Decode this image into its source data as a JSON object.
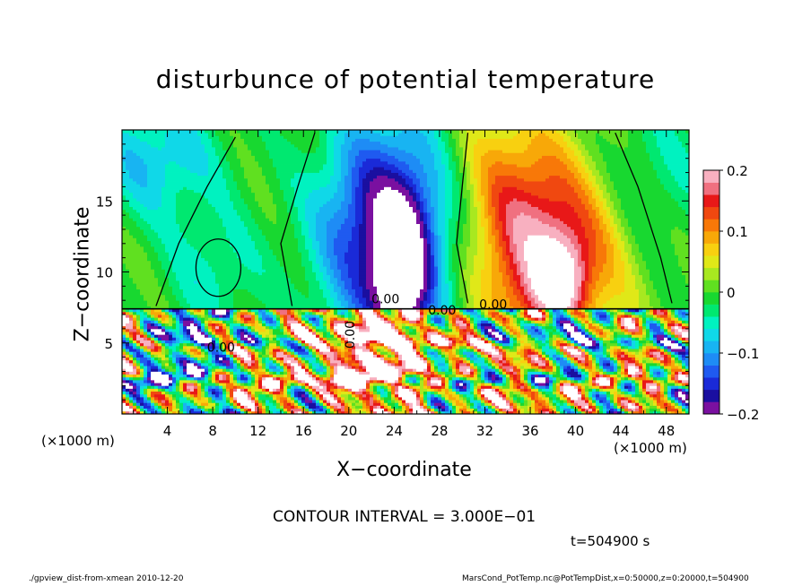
{
  "chart_data": {
    "type": "heatmap",
    "title": "disturbunce of potential temperature",
    "xlabel": "X−coordinate",
    "ylabel": "Z−coordinate",
    "x_unit_left": "(×1000 m)",
    "x_unit_right": "(×1000 m)",
    "xlim": [
      0,
      50
    ],
    "ylim": [
      0,
      20
    ],
    "x_ticks": [
      "4",
      "8",
      "12",
      "16",
      "20",
      "24",
      "28",
      "32",
      "36",
      "40",
      "44",
      "48"
    ],
    "y_ticks": [
      "5",
      "10",
      "15"
    ],
    "colorbar": {
      "range": [
        -0.2,
        0.2
      ],
      "tick_labels": [
        "0.2",
        "0.1",
        "0",
        "−0.1",
        "−0.2"
      ],
      "tick_values": [
        0.2,
        0.1,
        0,
        -0.1,
        -0.2
      ],
      "colors": [
        "#7a10a0",
        "#1a0fa0",
        "#1a2ad8",
        "#1f5af0",
        "#1e8cf5",
        "#18b4f2",
        "#10d8e8",
        "#00f2c0",
        "#00e870",
        "#18d830",
        "#60e020",
        "#a8e820",
        "#e0e818",
        "#f8d010",
        "#f8a808",
        "#f87808",
        "#f04810",
        "#e81818",
        "#f07080",
        "#f8b0c0"
      ]
    },
    "contour_labels": [
      "0.00",
      "0.00",
      "0.00",
      "0.00",
      "0.00"
    ],
    "contour_interval": "CONTOUR INTERVAL = 3.000E−01",
    "time": "t=504900 s"
  },
  "footer": {
    "left": "./gpview_dist-from-xmean  2010-12-20",
    "right": "MarsCond_PotTemp.nc@PotTempDist,x=0:50000,z=0:20000,t=504900"
  }
}
